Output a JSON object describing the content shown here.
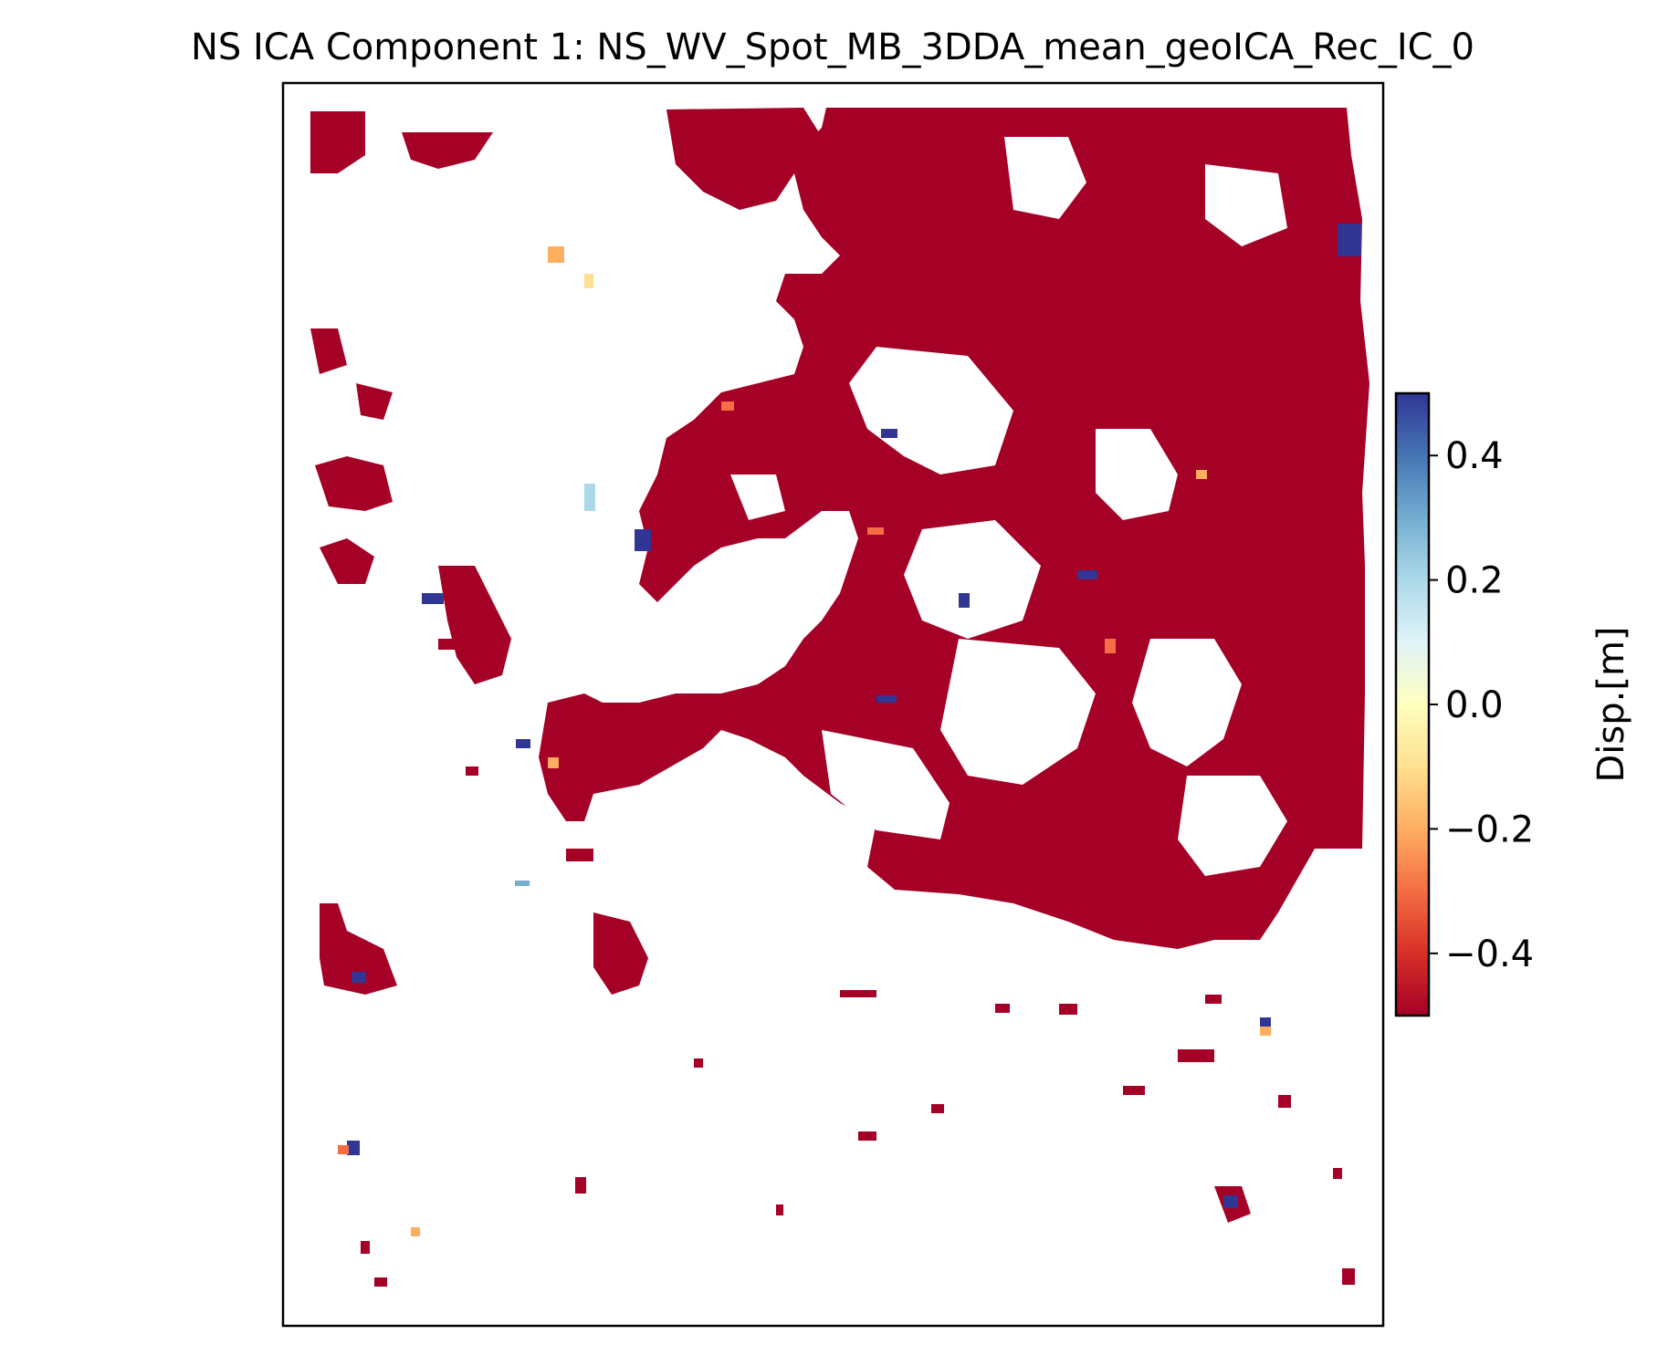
{
  "chart_data": {
    "type": "heatmap",
    "title": "NS ICA Component 1: NS_WV_Spot_MB_3DDA_mean_geoICA_Rec_IC_0",
    "xlabel": "",
    "ylabel": "",
    "colorbar": {
      "label": "Disp.[m]",
      "colormap": "RdYlBu",
      "vmin": -0.5,
      "vmax": 0.5,
      "ticks": [
        0.4,
        0.2,
        0.0,
        -0.2,
        -0.4
      ],
      "tick_labels": [
        "0.4",
        "0.2",
        "0.0",
        "−0.2",
        "−0.4"
      ],
      "colors": [
        "#a50026",
        "#d73027",
        "#f46d43",
        "#fdae61",
        "#fee090",
        "#ffffbf",
        "#e0f3f8",
        "#abd9e9",
        "#74add1",
        "#4575b4",
        "#313695"
      ]
    },
    "axes_ticks_visible": false,
    "grid": false,
    "dominant_value": -0.5,
    "description_values": {
      "background": "no data (white)",
      "main_patches": -0.5
    }
  },
  "colors": {
    "dark_red": "#a50026",
    "red": "#d73027",
    "orange": "#f46d43",
    "light_orange": "#fdae61",
    "yellow": "#fee090",
    "light_blue": "#abd9e9",
    "blue": "#4575b4",
    "dark_blue": "#313695"
  }
}
